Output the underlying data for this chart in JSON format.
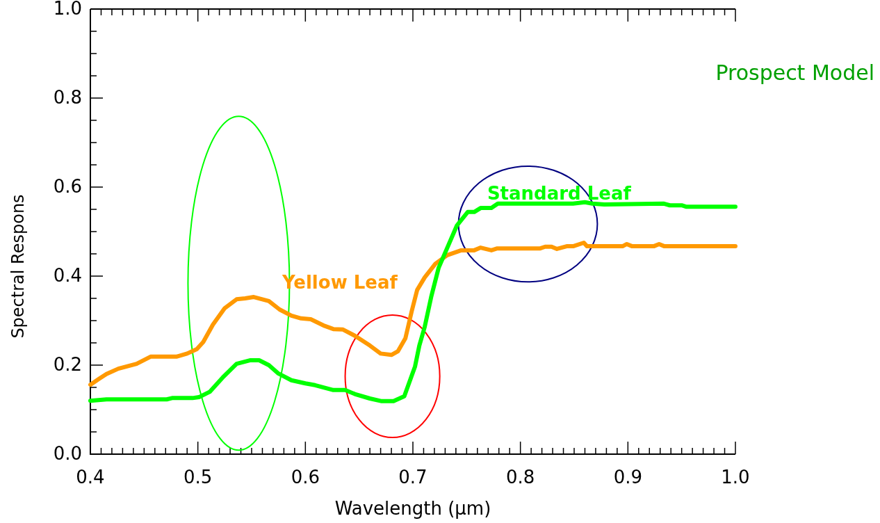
{
  "chart_data": {
    "type": "line",
    "xlabel": "Wavelength (μm)",
    "ylabel": "Spectral Respons",
    "annotations": [
      "Prospect Model"
    ],
    "xlim": [
      0.4,
      1.0
    ],
    "ylim": [
      0.0,
      1.0
    ],
    "xticks": [
      {
        "value": 0.4,
        "label": "0.4"
      },
      {
        "value": 0.41,
        "label": null
      },
      {
        "value": 0.42,
        "label": null
      },
      {
        "value": 0.43,
        "label": null
      },
      {
        "value": 0.44,
        "label": null
      },
      {
        "value": 0.45,
        "label": null
      },
      {
        "value": 0.46,
        "label": null
      },
      {
        "value": 0.47,
        "label": null
      },
      {
        "value": 0.48,
        "label": null
      },
      {
        "value": 0.49,
        "label": null
      },
      {
        "value": 0.5,
        "label": "0.5"
      },
      {
        "value": 0.51,
        "label": null
      },
      {
        "value": 0.52,
        "label": null
      },
      {
        "value": 0.53,
        "label": null
      },
      {
        "value": 0.54,
        "label": null
      },
      {
        "value": 0.55,
        "label": null
      },
      {
        "value": 0.56,
        "label": null
      },
      {
        "value": 0.57,
        "label": null
      },
      {
        "value": 0.58,
        "label": null
      },
      {
        "value": 0.59,
        "label": null
      },
      {
        "value": 0.6,
        "label": "0.6"
      },
      {
        "value": 0.61,
        "label": null
      },
      {
        "value": 0.62,
        "label": null
      },
      {
        "value": 0.63,
        "label": null
      },
      {
        "value": 0.64,
        "label": null
      },
      {
        "value": 0.65,
        "label": null
      },
      {
        "value": 0.66,
        "label": null
      },
      {
        "value": 0.67,
        "label": null
      },
      {
        "value": 0.68,
        "label": null
      },
      {
        "value": 0.69,
        "label": null
      },
      {
        "value": 0.7,
        "label": "0.7"
      },
      {
        "value": 0.71,
        "label": null
      },
      {
        "value": 0.72,
        "label": null
      },
      {
        "value": 0.73,
        "label": null
      },
      {
        "value": 0.74,
        "label": null
      },
      {
        "value": 0.75,
        "label": null
      },
      {
        "value": 0.76,
        "label": null
      },
      {
        "value": 0.77,
        "label": null
      },
      {
        "value": 0.78,
        "label": null
      },
      {
        "value": 0.79,
        "label": null
      },
      {
        "value": 0.8,
        "label": "0.8"
      },
      {
        "value": 0.81,
        "label": null
      },
      {
        "value": 0.82,
        "label": null
      },
      {
        "value": 0.83,
        "label": null
      },
      {
        "value": 0.84,
        "label": null
      },
      {
        "value": 0.85,
        "label": null
      },
      {
        "value": 0.86,
        "label": null
      },
      {
        "value": 0.87,
        "label": null
      },
      {
        "value": 0.88,
        "label": null
      },
      {
        "value": 0.89,
        "label": null
      },
      {
        "value": 0.9,
        "label": "0.9"
      },
      {
        "value": 0.91,
        "label": null
      },
      {
        "value": 0.92,
        "label": null
      },
      {
        "value": 0.93,
        "label": null
      },
      {
        "value": 0.94,
        "label": null
      },
      {
        "value": 0.95,
        "label": null
      },
      {
        "value": 0.96,
        "label": null
      },
      {
        "value": 0.97,
        "label": null
      },
      {
        "value": 0.98,
        "label": null
      },
      {
        "value": 0.99,
        "label": null
      },
      {
        "value": 1.0,
        "label": "1.0"
      }
    ],
    "yticks": [
      {
        "value": 0.0,
        "label": "0.0"
      },
      {
        "value": 0.05,
        "label": null
      },
      {
        "value": 0.1,
        "label": null
      },
      {
        "value": 0.15,
        "label": null
      },
      {
        "value": 0.2,
        "label": "0.2"
      },
      {
        "value": 0.25,
        "label": null
      },
      {
        "value": 0.3,
        "label": null
      },
      {
        "value": 0.35,
        "label": null
      },
      {
        "value": 0.4,
        "label": "0.4"
      },
      {
        "value": 0.45,
        "label": null
      },
      {
        "value": 0.5,
        "label": null
      },
      {
        "value": 0.55,
        "label": null
      },
      {
        "value": 0.6,
        "label": "0.6"
      },
      {
        "value": 0.65,
        "label": null
      },
      {
        "value": 0.7,
        "label": null
      },
      {
        "value": 0.75,
        "label": null
      },
      {
        "value": 0.8,
        "label": "0.8"
      },
      {
        "value": 0.85,
        "label": null
      },
      {
        "value": 0.9,
        "label": null
      },
      {
        "value": 0.95,
        "label": null
      },
      {
        "value": 1.0,
        "label": "1.0"
      }
    ],
    "grid": false,
    "marker": "none",
    "line_style": "solid",
    "series": [
      {
        "name": "Yellow Leaf",
        "color": "#ff9900",
        "x": [
          0.4,
          0.408,
          0.415,
          0.426,
          0.443,
          0.456,
          0.46,
          0.48,
          0.49,
          0.499,
          0.505,
          0.514,
          0.525,
          0.536,
          0.544,
          0.552,
          0.566,
          0.576,
          0.587,
          0.596,
          0.605,
          0.618,
          0.626,
          0.635,
          0.646,
          0.66,
          0.67,
          0.68,
          0.686,
          0.693,
          0.699,
          0.704,
          0.711,
          0.721,
          0.732,
          0.745,
          0.757,
          0.763,
          0.773,
          0.778,
          0.818,
          0.823,
          0.829,
          0.834,
          0.843,
          0.849,
          0.859,
          0.862,
          0.895,
          0.899,
          0.904,
          0.924,
          0.929,
          0.934,
          1.0
        ],
        "values": [
          0.156,
          0.169,
          0.18,
          0.192,
          0.203,
          0.219,
          0.219,
          0.219,
          0.226,
          0.236,
          0.252,
          0.291,
          0.328,
          0.348,
          0.35,
          0.353,
          0.344,
          0.325,
          0.311,
          0.305,
          0.303,
          0.288,
          0.281,
          0.28,
          0.266,
          0.244,
          0.226,
          0.223,
          0.231,
          0.26,
          0.322,
          0.369,
          0.397,
          0.428,
          0.447,
          0.458,
          0.458,
          0.464,
          0.458,
          0.462,
          0.462,
          0.466,
          0.466,
          0.461,
          0.467,
          0.467,
          0.475,
          0.467,
          0.467,
          0.472,
          0.467,
          0.467,
          0.472,
          0.467,
          0.467
        ]
      },
      {
        "name": "Standard Leaf",
        "color": "#00ff00",
        "x": [
          0.4,
          0.415,
          0.471,
          0.476,
          0.495,
          0.501,
          0.511,
          0.523,
          0.536,
          0.549,
          0.557,
          0.566,
          0.575,
          0.587,
          0.6,
          0.609,
          0.626,
          0.637,
          0.646,
          0.66,
          0.671,
          0.682,
          0.692,
          0.699,
          0.702,
          0.706,
          0.711,
          0.717,
          0.724,
          0.741,
          0.751,
          0.757,
          0.763,
          0.773,
          0.779,
          0.849,
          0.86,
          0.867,
          0.878,
          0.933,
          0.939,
          0.95,
          0.954,
          1.0
        ],
        "values": [
          0.12,
          0.123,
          0.123,
          0.126,
          0.126,
          0.128,
          0.14,
          0.172,
          0.203,
          0.211,
          0.211,
          0.2,
          0.181,
          0.166,
          0.159,
          0.155,
          0.144,
          0.144,
          0.135,
          0.125,
          0.119,
          0.119,
          0.13,
          0.177,
          0.197,
          0.244,
          0.286,
          0.353,
          0.419,
          0.514,
          0.544,
          0.544,
          0.553,
          0.553,
          0.563,
          0.563,
          0.566,
          0.563,
          0.561,
          0.563,
          0.559,
          0.559,
          0.556,
          0.556
        ]
      }
    ]
  }
}
